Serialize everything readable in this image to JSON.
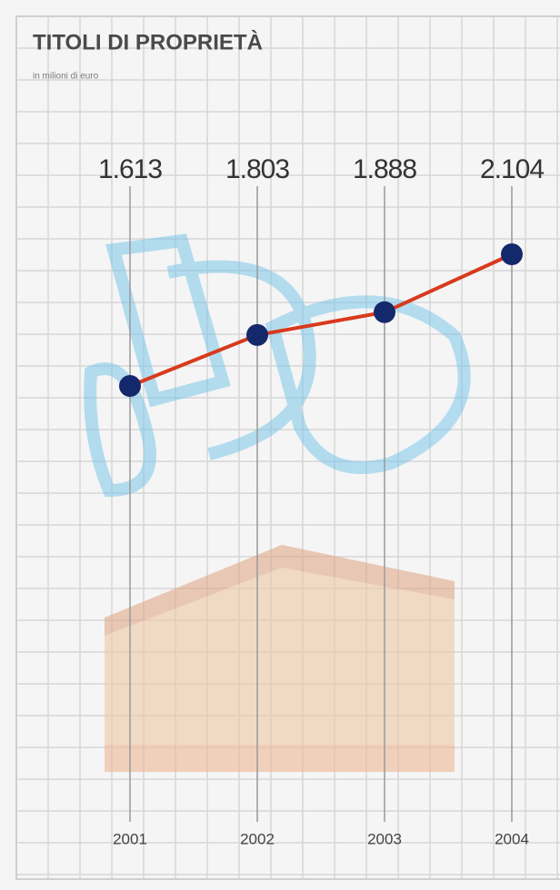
{
  "chart_data": {
    "type": "line",
    "title": "TITOLI DI PROPRIETÀ",
    "subtitle": "in milioni di euro",
    "categories": [
      "2001",
      "2002",
      "2003",
      "2004"
    ],
    "values": [
      1613,
      1803,
      1888,
      2104
    ],
    "value_labels": [
      "1.613",
      "1.803",
      "1.888",
      "2.104"
    ],
    "color": "#d83a1c",
    "marker_color": "#14296b"
  }
}
